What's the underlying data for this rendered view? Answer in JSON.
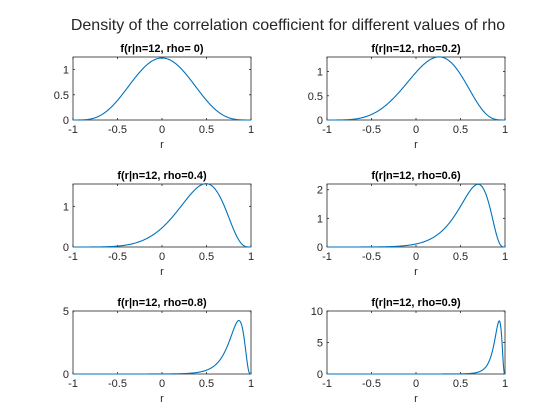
{
  "figure": {
    "title": "Density of the correlation coefficient for different values of rho",
    "line_color": "#0072BD"
  },
  "chart_data": [
    {
      "type": "line",
      "title": "f(r|n=12, rho=  0)",
      "xlabel": "r",
      "ylabel": "",
      "n": 12,
      "rho": 0.0,
      "xlim": [
        -1,
        1
      ],
      "ylim": [
        0,
        1.25
      ],
      "xticks": [
        -1,
        -0.5,
        0,
        0.5,
        1
      ],
      "yticks": [
        0,
        0.5,
        1
      ],
      "xtick_labels": [
        "-1",
        "-0.5",
        "0",
        "0.5",
        "1"
      ],
      "ytick_labels": [
        "0",
        "0.5",
        "1"
      ],
      "grid": false
    },
    {
      "type": "line",
      "title": "f(r|n=12, rho=0.2)",
      "xlabel": "r",
      "ylabel": "",
      "n": 12,
      "rho": 0.2,
      "xlim": [
        -1,
        1
      ],
      "ylim": [
        0,
        1.3
      ],
      "xticks": [
        -1,
        -0.5,
        0,
        0.5,
        1
      ],
      "yticks": [
        0,
        0.5,
        1
      ],
      "xtick_labels": [
        "-1",
        "-0.5",
        "0",
        "0.5",
        "1"
      ],
      "ytick_labels": [
        "0",
        "0.5",
        "1"
      ],
      "grid": false
    },
    {
      "type": "line",
      "title": "f(r|n=12, rho=0.4)",
      "xlabel": "r",
      "ylabel": "",
      "n": 12,
      "rho": 0.4,
      "xlim": [
        -1,
        1
      ],
      "ylim": [
        0,
        1.55
      ],
      "xticks": [
        -1,
        -0.5,
        0,
        0.5,
        1
      ],
      "yticks": [
        0,
        1
      ],
      "xtick_labels": [
        "-1",
        "-0.5",
        "0",
        "0.5",
        "1"
      ],
      "ytick_labels": [
        "0",
        "1"
      ],
      "grid": false
    },
    {
      "type": "line",
      "title": "f(r|n=12, rho=0.6)",
      "xlabel": "r",
      "ylabel": "",
      "n": 12,
      "rho": 0.6,
      "xlim": [
        -1,
        1
      ],
      "ylim": [
        0,
        2.2
      ],
      "xticks": [
        -1,
        -0.5,
        0,
        0.5,
        1
      ],
      "yticks": [
        0,
        1,
        2
      ],
      "xtick_labels": [
        "-1",
        "-0.5",
        "0",
        "0.5",
        "1"
      ],
      "ytick_labels": [
        "0",
        "1",
        "2"
      ],
      "grid": false
    },
    {
      "type": "line",
      "title": "f(r|n=12, rho=0.8)",
      "xlabel": "r",
      "ylabel": "",
      "n": 12,
      "rho": 0.8,
      "xlim": [
        -1,
        1
      ],
      "ylim": [
        0,
        5
      ],
      "xticks": [
        -1,
        -0.5,
        0,
        0.5,
        1
      ],
      "yticks": [
        0,
        5
      ],
      "xtick_labels": [
        "-1",
        "-0.5",
        "0",
        "0.5",
        "1"
      ],
      "ytick_labels": [
        "0",
        "5"
      ],
      "grid": false
    },
    {
      "type": "line",
      "title": "f(r|n=12, rho=0.9)",
      "xlabel": "r",
      "ylabel": "",
      "n": 12,
      "rho": 0.9,
      "xlim": [
        -1,
        1
      ],
      "ylim": [
        0,
        10
      ],
      "xticks": [
        -1,
        -0.5,
        0,
        0.5,
        1
      ],
      "yticks": [
        0,
        5,
        10
      ],
      "xtick_labels": [
        "-1",
        "-0.5",
        "0",
        "0.5",
        "1"
      ],
      "ytick_labels": [
        "0",
        "5",
        "10"
      ],
      "grid": false
    }
  ]
}
